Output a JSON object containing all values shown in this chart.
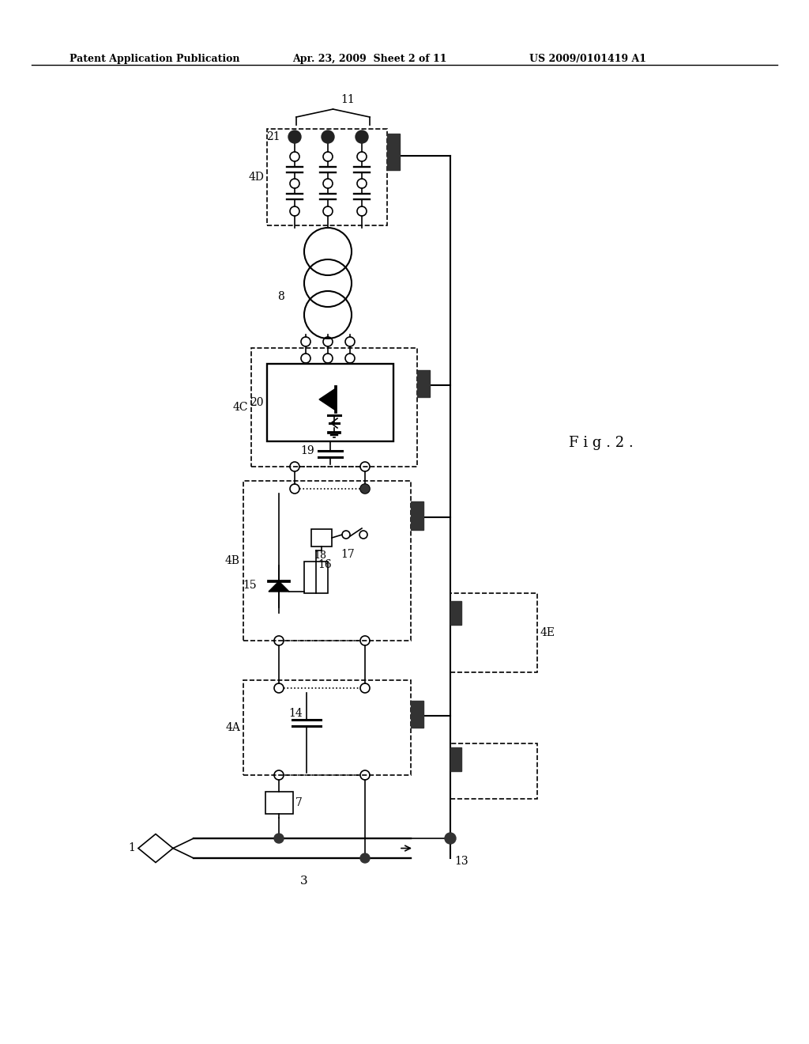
{
  "title_left": "Patent Application Publication",
  "title_mid": "Apr. 23, 2009  Sheet 2 of 11",
  "title_right": "US 2009/0101419 A1",
  "fig_label": "F i g . 2 .",
  "bg_color": "#ffffff",
  "line_color": "#000000",
  "label_11": "11",
  "label_21": "21",
  "label_4D": "4D",
  "label_8": "8",
  "label_20": "20",
  "label_4C": "4C",
  "label_19": "19",
  "label_4B": "4B",
  "label_15": "15",
  "label_16": "16",
  "label_17": "17",
  "label_18": "18",
  "label_4A": "4A",
  "label_14": "14",
  "label_7": "7",
  "label_4E": "4E",
  "label_13": "13",
  "label_3": "3",
  "label_1": "1"
}
